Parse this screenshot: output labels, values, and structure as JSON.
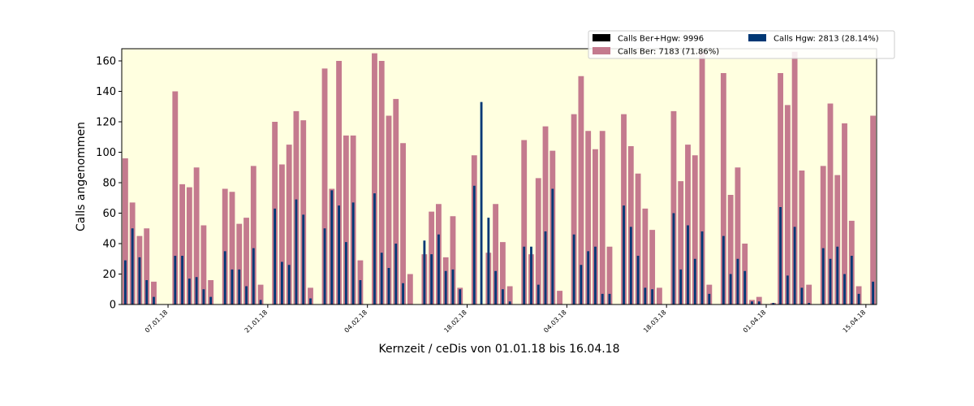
{
  "chart_data": {
    "type": "bar",
    "xlabel": "Kernzeit / ceDis von 01.01.18 bis 16.04.18",
    "ylabel": "Calls angenommen",
    "ylim": [
      0,
      168
    ],
    "yticks": [
      0,
      20,
      40,
      60,
      80,
      100,
      120,
      140,
      160
    ],
    "start_date": "2018-01-01",
    "end_date": "2018-04-16",
    "xtick_dates": [
      "2018-01-07",
      "2018-01-21",
      "2018-02-04",
      "2018-02-18",
      "2018-03-04",
      "2018-03-18",
      "2018-04-01",
      "2018-04-15"
    ],
    "xtick_labels": [
      "07.01.18",
      "21.01.18",
      "04.02.18",
      "18.02.18",
      "04.03.18",
      "18.03.18",
      "01.04.18",
      "15.04.18"
    ],
    "grid": false,
    "background": "#ffffe0",
    "legend": {
      "placement": "above-top-right",
      "entries": [
        {
          "label": "Calls Ber+Hgw: 9996",
          "color": "#000000"
        },
        {
          "label": "Calls Ber: 7183 (71.86%)",
          "color": "#c47a8e"
        },
        {
          "label": "Calls Hgw: 2813 (28.14%)",
          "color": "#003875"
        }
      ]
    },
    "x": [
      "2018-01-01",
      "2018-01-02",
      "2018-01-03",
      "2018-01-04",
      "2018-01-05",
      "2018-01-06",
      "2018-01-07",
      "2018-01-08",
      "2018-01-09",
      "2018-01-10",
      "2018-01-11",
      "2018-01-12",
      "2018-01-13",
      "2018-01-14",
      "2018-01-15",
      "2018-01-16",
      "2018-01-17",
      "2018-01-18",
      "2018-01-19",
      "2018-01-20",
      "2018-01-21",
      "2018-01-22",
      "2018-01-23",
      "2018-01-24",
      "2018-01-25",
      "2018-01-26",
      "2018-01-27",
      "2018-01-28",
      "2018-01-29",
      "2018-01-30",
      "2018-01-31",
      "2018-02-01",
      "2018-02-02",
      "2018-02-03",
      "2018-02-04",
      "2018-02-05",
      "2018-02-06",
      "2018-02-07",
      "2018-02-08",
      "2018-02-09",
      "2018-02-10",
      "2018-02-11",
      "2018-02-12",
      "2018-02-13",
      "2018-02-14",
      "2018-02-15",
      "2018-02-16",
      "2018-02-17",
      "2018-02-18",
      "2018-02-19",
      "2018-02-20",
      "2018-02-21",
      "2018-02-22",
      "2018-02-23",
      "2018-02-24",
      "2018-02-25",
      "2018-02-26",
      "2018-02-27",
      "2018-02-28",
      "2018-03-01",
      "2018-03-02",
      "2018-03-03",
      "2018-03-04",
      "2018-03-05",
      "2018-03-06",
      "2018-03-07",
      "2018-03-08",
      "2018-03-09",
      "2018-03-10",
      "2018-03-11",
      "2018-03-12",
      "2018-03-13",
      "2018-03-14",
      "2018-03-15",
      "2018-03-16",
      "2018-03-17",
      "2018-03-18",
      "2018-03-19",
      "2018-03-20",
      "2018-03-21",
      "2018-03-22",
      "2018-03-23",
      "2018-03-24",
      "2018-03-25",
      "2018-03-26",
      "2018-03-27",
      "2018-03-28",
      "2018-03-29",
      "2018-03-30",
      "2018-03-31",
      "2018-04-01",
      "2018-04-02",
      "2018-04-03",
      "2018-04-04",
      "2018-04-05",
      "2018-04-06",
      "2018-04-07",
      "2018-04-08",
      "2018-04-09",
      "2018-04-10",
      "2018-04-11",
      "2018-04-12",
      "2018-04-13",
      "2018-04-14",
      "2018-04-15",
      "2018-04-16"
    ],
    "series": [
      {
        "name": "Calls Ber",
        "values": [
          96,
          67,
          45,
          50,
          15,
          0,
          0,
          140,
          79,
          77,
          90,
          52,
          16,
          0,
          76,
          74,
          53,
          57,
          91,
          13,
          0,
          120,
          92,
          105,
          127,
          121,
          11,
          0,
          155,
          76,
          160,
          111,
          111,
          29,
          0,
          165,
          160,
          124,
          135,
          106,
          20,
          0,
          33,
          61,
          66,
          31,
          58,
          11,
          0,
          98,
          0,
          34,
          66,
          41,
          12,
          0,
          108,
          33,
          83,
          117,
          101,
          9,
          0,
          125,
          150,
          114,
          102,
          114,
          38,
          0,
          125,
          104,
          86,
          63,
          49,
          11,
          0,
          127,
          81,
          105,
          98,
          166,
          13,
          0,
          152,
          72,
          90,
          40,
          3,
          5,
          0,
          1,
          152,
          131,
          166,
          88,
          13,
          0,
          91,
          132,
          85,
          119,
          55,
          12,
          0,
          124
        ]
      },
      {
        "name": "Calls Hgw",
        "values": [
          29,
          50,
          31,
          16,
          5,
          0,
          0,
          32,
          32,
          17,
          18,
          10,
          5,
          0,
          35,
          23,
          23,
          12,
          37,
          3,
          0,
          63,
          28,
          26,
          69,
          59,
          4,
          0,
          50,
          75,
          65,
          41,
          67,
          16,
          0,
          73,
          34,
          24,
          40,
          14,
          0,
          0,
          42,
          33,
          46,
          22,
          23,
          10,
          0,
          78,
          133,
          57,
          22,
          10,
          2,
          0,
          38,
          38,
          13,
          48,
          76,
          0,
          0,
          46,
          26,
          35,
          38,
          7,
          7,
          0,
          65,
          51,
          32,
          11,
          10,
          0,
          0,
          60,
          23,
          52,
          30,
          48,
          7,
          0,
          45,
          20,
          30,
          22,
          2,
          2,
          0,
          1,
          64,
          19,
          51,
          11,
          1,
          0,
          37,
          30,
          38,
          20,
          32,
          7,
          0,
          15
        ]
      }
    ]
  }
}
